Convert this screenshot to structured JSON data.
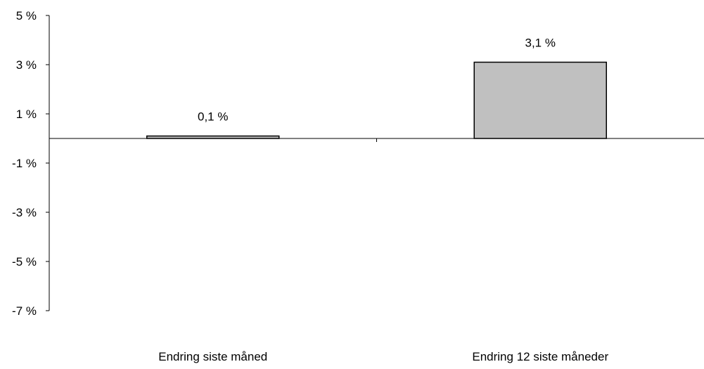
{
  "chart_data": {
    "type": "bar",
    "categories": [
      "Endring siste måned",
      "Endring 12 siste måneder"
    ],
    "values": [
      0.1,
      3.1
    ],
    "data_labels": [
      "0,1 %",
      "3,1 %"
    ],
    "title": "",
    "xlabel": "",
    "ylabel": "",
    "ylim": [
      -7,
      5
    ],
    "yticks": [
      5,
      3,
      1,
      -1,
      -3,
      -5,
      -7
    ],
    "ytick_labels": [
      "5 %",
      "3 %",
      "1 %",
      "-1 %",
      "-3 %",
      "-5 %",
      "-7 %"
    ],
    "grid": false,
    "legend": "none",
    "bar_color": "#c0c0c0",
    "bar_edge_color": "#000000"
  }
}
